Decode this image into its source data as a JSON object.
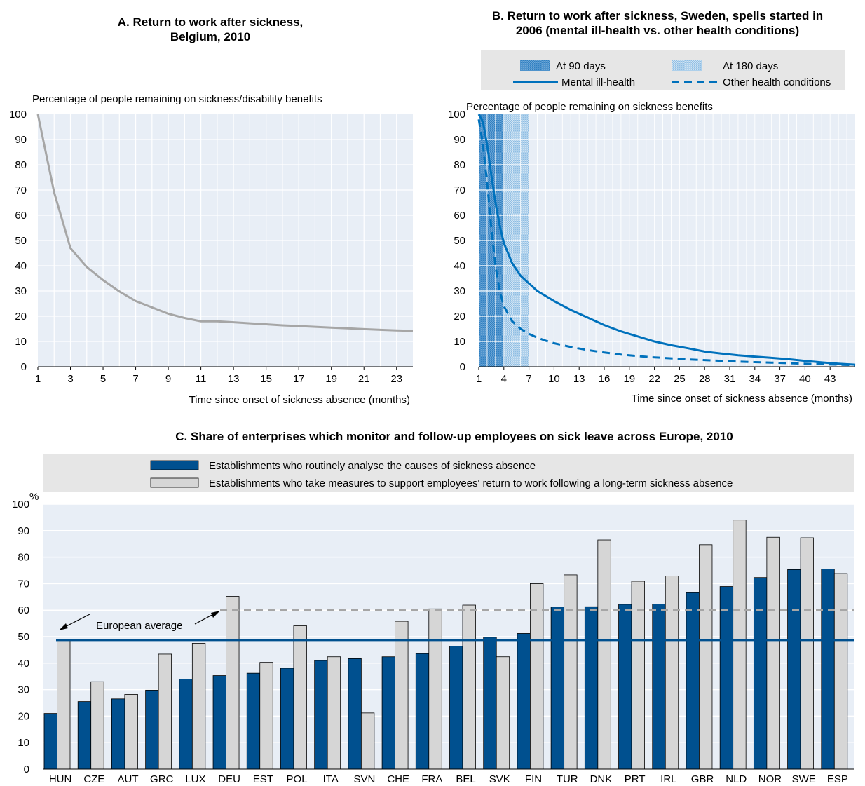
{
  "colors": {
    "panel_bg": "#e8eef6",
    "legend_bg": "#e6e6e6",
    "gridline": "#ffffff",
    "belgium_line": "#a6a6a6",
    "sweden_line": "#0071bc",
    "band_dark": "#4e93cc",
    "band_light": "#9cc5e6",
    "bar_dark": "#00508f",
    "bar_light": "#d6d6d6",
    "avg_dark": "#00508f",
    "avg_light": "#a6a6a6"
  },
  "chart_data": [
    {
      "id": "A",
      "type": "line",
      "title": "A. Return to work after sickness,\nBelgium, 2010",
      "ylabel": "Percentage of people remaining on sickness/disability benefits",
      "xlabel": "Time since onset of sickness absence (months)",
      "xlim": [
        1,
        24
      ],
      "ylim": [
        0,
        100
      ],
      "xticks": [
        1,
        3,
        5,
        7,
        9,
        11,
        13,
        15,
        17,
        19,
        21,
        23
      ],
      "yticks": [
        0,
        10,
        20,
        30,
        40,
        50,
        60,
        70,
        80,
        90,
        100
      ],
      "series": [
        {
          "x": [
            1,
            2,
            3,
            4,
            5,
            6,
            7,
            8,
            9,
            10,
            11,
            12,
            13,
            14,
            15,
            16,
            17,
            18,
            19,
            20,
            21,
            22,
            23,
            24
          ],
          "y": [
            100,
            69,
            47,
            39.5,
            34.3,
            29.8,
            26,
            23.5,
            21,
            19.3,
            18,
            18,
            17.6,
            17.2,
            16.8,
            16.4,
            16.1,
            15.8,
            15.5,
            15.2,
            14.9,
            14.6,
            14.4,
            14.2
          ]
        }
      ]
    },
    {
      "id": "B",
      "type": "line",
      "title": "B. Return to work after sickness, Sweden, spells started in\n2006 (mental ill-health vs. other health conditions)",
      "ylabel": "Percentage of people remaining on sickness benefits",
      "xlabel": "Time since onset of sickness absence  (months)",
      "xlim": [
        1,
        46
      ],
      "ylim": [
        0,
        100
      ],
      "xticks": [
        1,
        4,
        7,
        10,
        13,
        16,
        19,
        22,
        25,
        28,
        31,
        34,
        37,
        40,
        43
      ],
      "yticks": [
        0,
        10,
        20,
        30,
        40,
        50,
        60,
        70,
        80,
        90,
        100
      ],
      "bands": [
        {
          "label": "At 90 days",
          "x0": 1,
          "x1": 4
        },
        {
          "label": "At 180 days",
          "x0": 4,
          "x1": 7
        }
      ],
      "series": [
        {
          "name": "Mental ill-health",
          "style": "solid",
          "x": [
            1,
            1.5,
            2,
            2.5,
            3,
            3.5,
            4,
            5,
            6,
            7,
            8,
            9,
            10,
            12,
            14,
            16,
            18,
            20,
            22,
            24,
            26,
            28,
            30,
            32,
            34,
            36,
            38,
            40,
            42,
            44,
            46
          ],
          "y": [
            100,
            97,
            88,
            76,
            65,
            56,
            49,
            41,
            36,
            33,
            30,
            28,
            26,
            22.5,
            19.5,
            16.5,
            14,
            12,
            10,
            8.5,
            7.3,
            6,
            5.2,
            4.5,
            4,
            3.5,
            3,
            2.3,
            1.7,
            1.2,
            0.8
          ]
        },
        {
          "name": "Other health conditions",
          "style": "dashed",
          "x": [
            1,
            1.5,
            2,
            2.5,
            3,
            3.5,
            4,
            5,
            6,
            7,
            8,
            9,
            10,
            12,
            14,
            16,
            18,
            20,
            22,
            24,
            26,
            28,
            30,
            32,
            34,
            36,
            38,
            40,
            42,
            44,
            46
          ],
          "y": [
            98,
            88,
            73,
            55,
            40,
            30,
            24,
            18,
            15,
            13,
            11.5,
            10.3,
            9.3,
            7.8,
            6.6,
            5.6,
            4.8,
            4.2,
            3.7,
            3.3,
            2.9,
            2.6,
            2.3,
            2,
            1.8,
            1.6,
            1.4,
            1.2,
            1,
            0.8,
            0.6
          ]
        }
      ]
    },
    {
      "id": "C",
      "type": "bar",
      "title": "C. Share of enterprises which monitor and follow-up employees on sick leave across Europe, 2010",
      "yunit": "%",
      "ylim": [
        0,
        100
      ],
      "yticks": [
        0,
        10,
        20,
        30,
        40,
        50,
        60,
        70,
        80,
        90,
        100
      ],
      "categories": [
        "HUN",
        "CZE",
        "AUT",
        "GRC",
        "LUX",
        "DEU",
        "EST",
        "POL",
        "ITA",
        "SVN",
        "CHE",
        "FRA",
        "BEL",
        "SVK",
        "FIN",
        "TUR",
        "DNK",
        "PRT",
        "IRL",
        "GBR",
        "NLD",
        "NOR",
        "SWE",
        "ESP"
      ],
      "series": [
        {
          "name": "Establishments who routinely analyse the causes of sickness absence",
          "values": [
            21,
            25.5,
            26.5,
            29.8,
            34,
            35.3,
            36.2,
            38.1,
            41,
            41.7,
            42.4,
            43.6,
            46.4,
            49.8,
            51.2,
            61.2,
            61.3,
            62.2,
            62.3,
            66.6,
            68.9,
            72.3,
            75.3,
            75.5
          ]
        },
        {
          "name": "Establishments who take measures to support employees' return to work following a long-term sickness absence",
          "values": [
            49,
            33,
            28.2,
            43.4,
            47.5,
            65.2,
            40.3,
            54.1,
            42.4,
            21.2,
            55.8,
            60.5,
            61.9,
            42.4,
            70,
            73.3,
            86.5,
            70.9,
            72.9,
            84.7,
            94,
            87.5,
            87.3,
            73.8
          ]
        }
      ],
      "averages": [
        {
          "series": 0,
          "value": 48.7,
          "style": "solid"
        },
        {
          "series": 1,
          "value": 60.2,
          "style": "dashed"
        }
      ],
      "annotation": "European average"
    }
  ]
}
